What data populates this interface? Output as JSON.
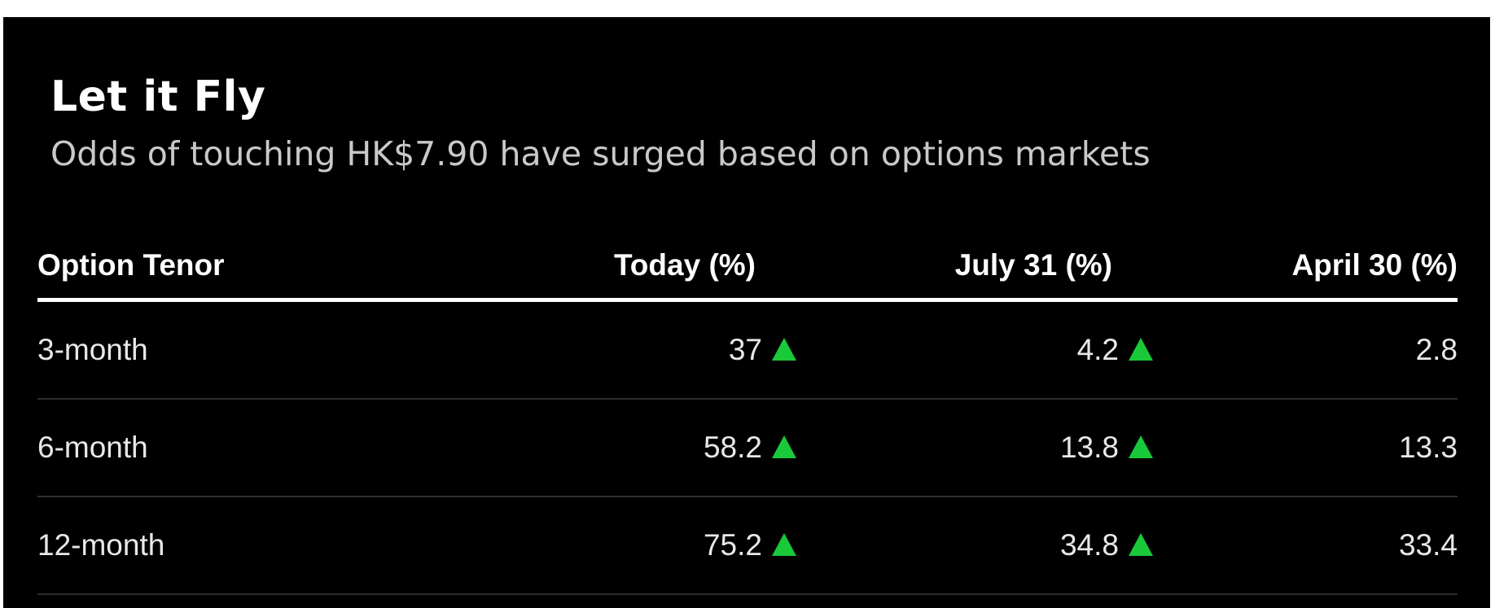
{
  "chart_data": {
    "type": "table",
    "title": "Let it Fly",
    "subtitle": "Odds of touching HK$7.90 have surged based on options markets",
    "columns": [
      "Option Tenor",
      "Today (%)",
      "July 31 (%)",
      "April 30 (%)"
    ],
    "rows": [
      {
        "tenor": "3-month",
        "today": "37",
        "july31": "4.2",
        "april30": "2.8",
        "today_up": true,
        "july31_up": true
      },
      {
        "tenor": "6-month",
        "today": "58.2",
        "july31": "13.8",
        "april30": "13.3",
        "today_up": true,
        "july31_up": true
      },
      {
        "tenor": "12-month",
        "today": "75.2",
        "july31": "34.8",
        "april30": "33.4",
        "today_up": true,
        "july31_up": true
      }
    ],
    "colors": {
      "background": "#000000",
      "text": "#ffffff",
      "up_arrow": "#19c93a",
      "divider": "#2e2e2e"
    },
    "icons": {
      "up_indicator": "up-triangle-icon"
    }
  }
}
